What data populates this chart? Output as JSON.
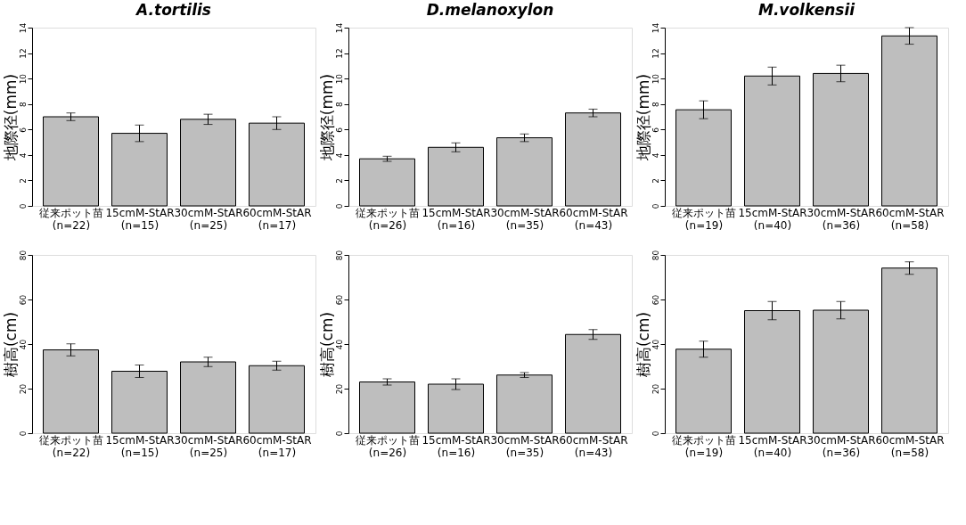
{
  "chart_data": [
    {
      "type": "bar",
      "title": "A.tortilis",
      "ylabel": "地際径(mm)",
      "categories": [
        "従来ポット苗\n(n=22)",
        "15cmM-StAR\n(n=15)",
        "30cmM-StAR\n(n=25)",
        "60cmM-StAR\n(n=17)"
      ],
      "values": [
        7.0,
        5.7,
        6.8,
        6.5
      ],
      "errors": [
        0.3,
        0.65,
        0.4,
        0.5
      ],
      "color": "#bebebe",
      "ylim": [
        0,
        14
      ],
      "yticks": [
        0,
        2,
        4,
        6,
        8,
        10,
        12,
        14
      ],
      "grid": false
    },
    {
      "type": "bar",
      "title": "D.melanoxylon",
      "ylabel": "地際径(mm)",
      "categories": [
        "従来ポット苗\n(n=26)",
        "15cmM-StAR\n(n=16)",
        "30cmM-StAR\n(n=35)",
        "60cmM-StAR\n(n=43)"
      ],
      "values": [
        3.7,
        4.6,
        5.35,
        7.3
      ],
      "errors": [
        0.2,
        0.35,
        0.3,
        0.3
      ],
      "color": "#bebebe",
      "ylim": [
        0,
        14
      ],
      "yticks": [
        0,
        2,
        4,
        6,
        8,
        10,
        12,
        14
      ],
      "grid": false
    },
    {
      "type": "bar",
      "title": "M.volkensii",
      "ylabel": "地際径(mm)",
      "categories": [
        "従来ポット苗\n(n=19)",
        "15cmM-StAR\n(n=40)",
        "30cmM-StAR\n(n=36)",
        "60cmM-StAR\n(n=58)"
      ],
      "values": [
        7.55,
        10.2,
        10.4,
        13.35
      ],
      "errors": [
        0.7,
        0.7,
        0.65,
        0.65
      ],
      "color": "#bebebe",
      "ylim": [
        0,
        14
      ],
      "yticks": [
        0,
        2,
        4,
        6,
        8,
        10,
        12,
        14
      ],
      "grid": false
    },
    {
      "type": "bar",
      "ylabel": "樹高(cm)",
      "categories": [
        "従来ポット苗\n(n=22)",
        "15cmM-StAR\n(n=15)",
        "30cmM-StAR\n(n=25)",
        "60cmM-StAR\n(n=17)"
      ],
      "values": [
        37.4,
        27.8,
        32.0,
        30.3
      ],
      "errors": [
        2.7,
        2.8,
        2.1,
        2.0
      ],
      "color": "#bebebe",
      "ylim": [
        0,
        80
      ],
      "yticks": [
        0,
        20,
        40,
        60,
        80
      ],
      "grid": false
    },
    {
      "type": "bar",
      "ylabel": "樹高(cm)",
      "categories": [
        "従来ポット苗\n(n=26)",
        "15cmM-StAR\n(n=16)",
        "30cmM-StAR\n(n=35)",
        "60cmM-StAR\n(n=43)"
      ],
      "values": [
        23.0,
        22.0,
        26.1,
        44.3
      ],
      "errors": [
        1.4,
        2.4,
        1.1,
        2.2
      ],
      "color": "#bebebe",
      "ylim": [
        0,
        80
      ],
      "yticks": [
        0,
        20,
        40,
        60,
        80
      ],
      "grid": false
    },
    {
      "type": "bar",
      "ylabel": "樹高(cm)",
      "categories": [
        "従来ポット苗\n(n=19)",
        "15cmM-StAR\n(n=40)",
        "30cmM-StAR\n(n=36)",
        "60cmM-StAR\n(n=58)"
      ],
      "values": [
        37.7,
        55.0,
        55.2,
        74.1
      ],
      "errors": [
        3.6,
        4.1,
        3.9,
        2.8
      ],
      "color": "#bebebe",
      "ylim": [
        0,
        80
      ],
      "yticks": [
        0,
        20,
        40,
        60,
        80
      ],
      "grid": false
    }
  ]
}
